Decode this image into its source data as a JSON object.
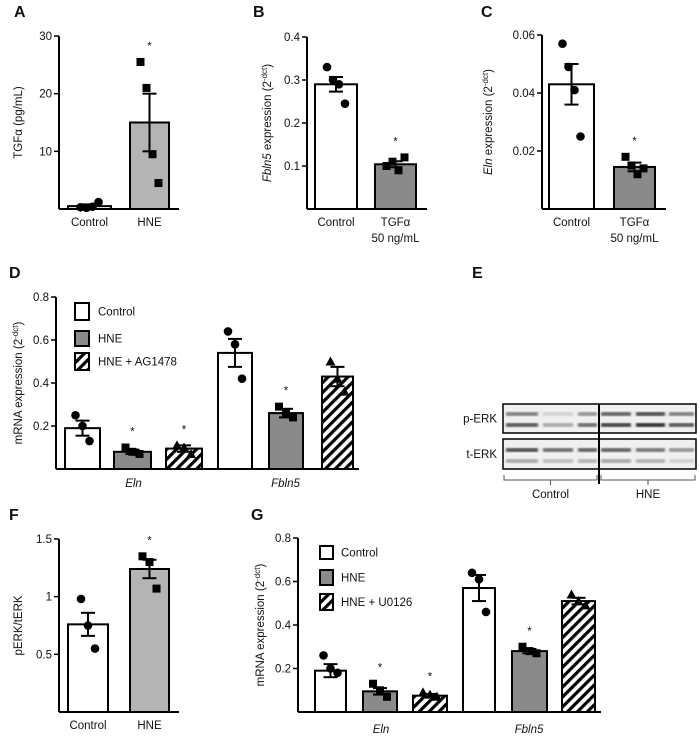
{
  "colors": {
    "white_bar": "#ffffff",
    "light_gray_bar": "#b4b4b4",
    "dark_gray_bar": "#8a8a8a",
    "axis": "#000000"
  },
  "chart_data": [
    {
      "panel": "A",
      "type": "bar",
      "ylabel": {
        "pre": "TGFα (pg/mL)",
        "italic": "",
        "post": "",
        "sup": "",
        "end": ""
      },
      "ylim": [
        0,
        30
      ],
      "yticks": [
        "30",
        "20",
        "10"
      ],
      "ytick_values": [
        30,
        20,
        10
      ],
      "categories": [
        {
          "line1": "Control",
          "line2": ""
        },
        {
          "line1": "HNE",
          "line2": ""
        }
      ],
      "bars": [
        {
          "value": 0.5,
          "sem": 0.3,
          "fill": "white",
          "marker": "circle",
          "points": [
            0.3,
            0.2,
            0.4,
            1.2
          ],
          "star": ""
        },
        {
          "value": 15,
          "sem": 5,
          "fill": "light",
          "marker": "square",
          "points": [
            25.5,
            21,
            9.5,
            4.5
          ],
          "star": "*"
        }
      ]
    },
    {
      "panel": "B",
      "type": "bar",
      "ylabel": {
        "pre": "",
        "italic": "Fbln5",
        "post": " expression (2",
        "sup": "-dct",
        "end": ")"
      },
      "ylim": [
        0,
        0.4
      ],
      "yticks": [
        "0.4",
        "0.3",
        "0.2",
        "0.1"
      ],
      "ytick_values": [
        0.4,
        0.3,
        0.2,
        0.1
      ],
      "categories": [
        {
          "line1": "Control",
          "line2": ""
        },
        {
          "line1": "TGFα",
          "line2": "50 ng/mL"
        }
      ],
      "bars": [
        {
          "value": 0.29,
          "sem": 0.017,
          "fill": "white",
          "marker": "circle",
          "points": [
            0.33,
            0.3,
            0.29,
            0.245
          ],
          "star": ""
        },
        {
          "value": 0.104,
          "sem": 0.007,
          "fill": "dark",
          "marker": "square",
          "points": [
            0.1,
            0.11,
            0.09,
            0.12
          ],
          "star": "*"
        }
      ]
    },
    {
      "panel": "C",
      "type": "bar",
      "ylabel": {
        "pre": "",
        "italic": "Eln",
        "post": " expression (2",
        "sup": "-dct",
        "end": ")"
      },
      "ylim": [
        0,
        0.06
      ],
      "yticks": [
        "0.06",
        "0.04",
        "0.02"
      ],
      "ytick_values": [
        0.06,
        0.04,
        0.02
      ],
      "categories": [
        {
          "line1": "Control",
          "line2": ""
        },
        {
          "line1": "TGFα",
          "line2": "50 ng/mL"
        }
      ],
      "bars": [
        {
          "value": 0.043,
          "sem": 0.007,
          "fill": "white",
          "marker": "circle",
          "points": [
            0.057,
            0.049,
            0.041,
            0.025
          ],
          "star": ""
        },
        {
          "value": 0.0145,
          "sem": 0.0015,
          "fill": "dark",
          "marker": "square",
          "points": [
            0.018,
            0.015,
            0.012,
            0.014
          ],
          "star": "*"
        }
      ]
    },
    {
      "panel": "D",
      "type": "bar",
      "ylabel": {
        "pre": "mRNA expression (2",
        "italic": "",
        "post": "",
        "sup": "-dct",
        "end": ")"
      },
      "ylim": [
        0,
        0.8
      ],
      "yticks": [
        "0.8",
        "0.6",
        "0.4",
        "0.2"
      ],
      "ytick_values": [
        0.8,
        0.6,
        0.4,
        0.2
      ],
      "groups": [
        "Eln",
        "Fbln5"
      ],
      "legend": [
        {
          "label": "Control",
          "fill": "white"
        },
        {
          "label": "HNE",
          "fill": "dark"
        },
        {
          "label": "HNE + AG1478",
          "fill": "hatch"
        }
      ],
      "bars": [
        {
          "group": "Eln",
          "value": 0.19,
          "sem": 0.035,
          "fill": "white",
          "marker": "circle",
          "points": [
            0.25,
            0.2,
            0.13
          ],
          "star": ""
        },
        {
          "group": "Eln",
          "value": 0.08,
          "sem": 0.01,
          "fill": "dark",
          "marker": "square",
          "points": [
            0.1,
            0.08,
            0.07
          ],
          "star": "*"
        },
        {
          "group": "Eln",
          "value": 0.095,
          "sem": 0.015,
          "fill": "hatch",
          "marker": "triangle",
          "points": [
            0.11,
            0.1,
            0.07
          ],
          "star": "*"
        },
        {
          "group": "Fbln5",
          "value": 0.54,
          "sem": 0.065,
          "fill": "white",
          "marker": "circle",
          "points": [
            0.64,
            0.58,
            0.42
          ],
          "star": ""
        },
        {
          "group": "Fbln5",
          "value": 0.26,
          "sem": 0.02,
          "fill": "dark",
          "marker": "square",
          "points": [
            0.29,
            0.26,
            0.24
          ],
          "star": "*"
        },
        {
          "group": "Fbln5",
          "value": 0.43,
          "sem": 0.045,
          "fill": "hatch",
          "marker": "triangle",
          "points": [
            0.5,
            0.42,
            0.36
          ],
          "star": ""
        }
      ]
    },
    {
      "panel": "F",
      "type": "bar",
      "ylabel": {
        "pre": "pERK/tERK",
        "italic": "",
        "post": "",
        "sup": "",
        "end": ""
      },
      "ylim": [
        0,
        1.5
      ],
      "yticks": [
        "1.5",
        "1",
        "0.5"
      ],
      "ytick_values": [
        1.5,
        1,
        0.5
      ],
      "categories": [
        {
          "line1": "Control",
          "line2": ""
        },
        {
          "line1": "HNE",
          "line2": ""
        }
      ],
      "bars": [
        {
          "value": 0.76,
          "sem": 0.1,
          "fill": "white",
          "marker": "circle",
          "points": [
            0.98,
            0.75,
            0.55
          ],
          "star": ""
        },
        {
          "value": 1.24,
          "sem": 0.08,
          "fill": "light",
          "marker": "square",
          "points": [
            1.35,
            1.3,
            1.07
          ],
          "star": "*"
        }
      ]
    },
    {
      "panel": "G",
      "type": "bar",
      "ylabel": {
        "pre": "mRNA expression (2",
        "italic": "",
        "post": "",
        "sup": "-dct",
        "end": ")"
      },
      "ylim": [
        0,
        0.8
      ],
      "yticks": [
        "0.8",
        "0.6",
        "0.4",
        "0.2"
      ],
      "ytick_values": [
        0.8,
        0.6,
        0.4,
        0.2
      ],
      "groups": [
        "Eln",
        "Fbln5"
      ],
      "legend": [
        {
          "label": "Control",
          "fill": "white"
        },
        {
          "label": "HNE",
          "fill": "dark"
        },
        {
          "label": "HNE + U0126",
          "fill": "hatch"
        }
      ],
      "bars": [
        {
          "group": "Eln",
          "value": 0.19,
          "sem": 0.03,
          "fill": "white",
          "marker": "circle",
          "points": [
            0.26,
            0.2,
            0.18
          ],
          "star": ""
        },
        {
          "group": "Eln",
          "value": 0.095,
          "sem": 0.015,
          "fill": "dark",
          "marker": "square",
          "points": [
            0.13,
            0.1,
            0.07
          ],
          "star": "*"
        },
        {
          "group": "Eln",
          "value": 0.075,
          "sem": 0.008,
          "fill": "hatch",
          "marker": "triangle",
          "points": [
            0.09,
            0.08,
            0.07
          ],
          "star": "*"
        },
        {
          "group": "Fbln5",
          "value": 0.57,
          "sem": 0.06,
          "fill": "white",
          "marker": "circle",
          "points": [
            0.64,
            0.61,
            0.46
          ],
          "star": ""
        },
        {
          "group": "Fbln5",
          "value": 0.28,
          "sem": 0.01,
          "fill": "dark",
          "marker": "square",
          "points": [
            0.3,
            0.28,
            0.27
          ],
          "star": "*"
        },
        {
          "group": "Fbln5",
          "value": 0.51,
          "sem": 0.015,
          "fill": "hatch",
          "marker": "triangle",
          "points": [
            0.54,
            0.51,
            0.49
          ],
          "star": ""
        }
      ]
    }
  ],
  "blot": {
    "panel": "E",
    "rows": [
      "p-ERK",
      "t-ERK"
    ],
    "groups": [
      "Control",
      "HNE"
    ]
  }
}
